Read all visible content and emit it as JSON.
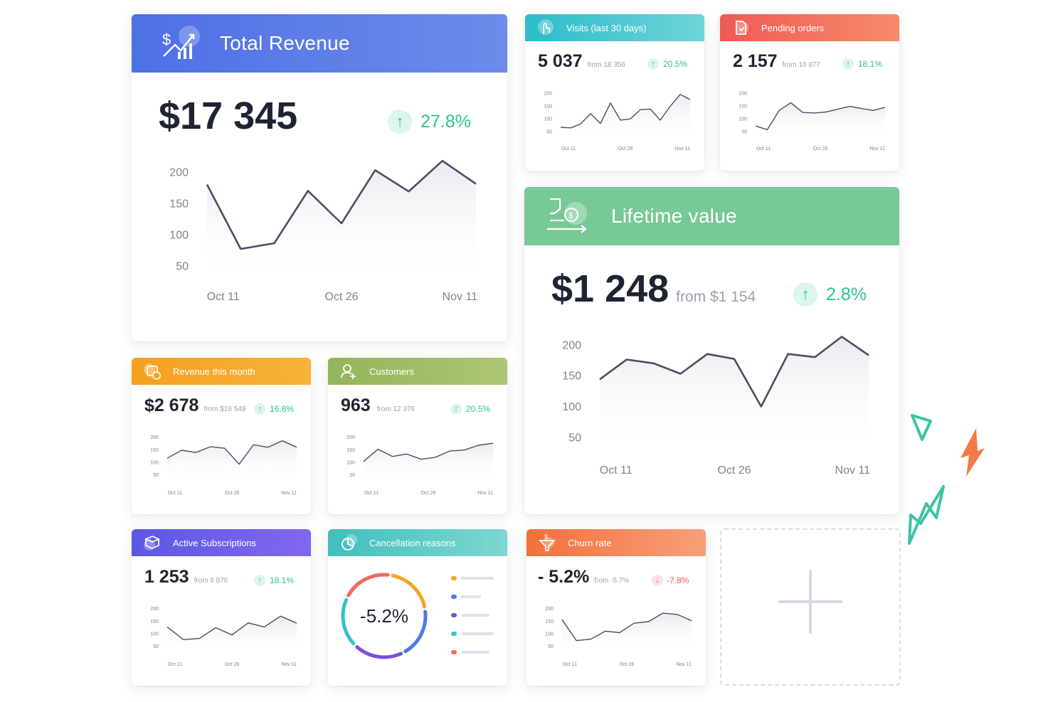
{
  "cards": {
    "total_revenue": {
      "title": "Total Revenue",
      "value": "$17 345",
      "change": "27.8%",
      "icon": "revenue-chart-icon",
      "color": "#5b7ee6"
    },
    "visits": {
      "title": "Visits (last 30 days)",
      "value": "5 037",
      "from": "from 18 356",
      "change": "20.5%",
      "icon": "touch-hand-icon",
      "color": "#3fc3cf"
    },
    "pending_orders": {
      "title": "Pending orders",
      "value": "2 157",
      "from": "from 10 877",
      "change": "18.1%",
      "icon": "document-icon",
      "color": "#f0645a"
    },
    "lifetime_value": {
      "title": "Lifetime value",
      "value": "$1 248",
      "from": "from $1 154",
      "change": "2.8%",
      "icon": "money-hand-icon",
      "color": "#77c996"
    },
    "revenue_month": {
      "title": "Revenue this month",
      "value": "$2 678",
      "from": "from $16 549",
      "change": "16.8%",
      "icon": "calendar-money-icon",
      "color": "#f5a524"
    },
    "customers": {
      "title": "Customers",
      "value": "963",
      "from": "from 12 376",
      "change": "20.5%",
      "icon": "user-add-icon",
      "color": "#9fbc63"
    },
    "subscriptions": {
      "title": "Active Subscriptions",
      "value": "1 253",
      "from": "from 6 876",
      "change": "18.1%",
      "icon": "subscription-box-icon",
      "color": "#6a5ce6"
    },
    "cancellation": {
      "title": "Cancellation reasons",
      "value": "-5.2%",
      "icon": "pie-chart-icon",
      "color": "#52c7c0"
    },
    "churn": {
      "title": "Churn rate",
      "value": "- 5.2%",
      "from": "from -5.7%",
      "change": "-7.8%",
      "icon": "funnel-money-icon",
      "color": "#f27b45"
    }
  },
  "chart_data": [
    {
      "id": "total_revenue",
      "type": "area",
      "y_ticks": [
        200,
        150,
        100,
        50
      ],
      "x_ticks": [
        "Oct 11",
        "Oct 26",
        "Nov 11"
      ],
      "ylim": [
        20,
        225
      ],
      "values": [
        180,
        77,
        86,
        170,
        118,
        203,
        169,
        218,
        181
      ]
    },
    {
      "id": "visits",
      "type": "area",
      "y_ticks": [
        200,
        150,
        100,
        50
      ],
      "x_ticks": [
        "Oct 11",
        "Oct 26",
        "Nov 11"
      ],
      "ylim": [
        20,
        225
      ],
      "values": [
        67,
        65,
        80,
        120,
        82,
        162,
        95,
        100,
        136,
        138,
        95,
        149,
        195,
        175
      ]
    },
    {
      "id": "pending_orders",
      "type": "area",
      "y_ticks": [
        200,
        150,
        100,
        50
      ],
      "x_ticks": [
        "Oct 11",
        "Oct 26",
        "Nov 11"
      ],
      "ylim": [
        20,
        225
      ],
      "values": [
        72,
        58,
        133,
        163,
        125,
        123,
        127,
        138,
        149,
        140,
        133,
        145
      ]
    },
    {
      "id": "lifetime_value",
      "type": "area",
      "y_ticks": [
        200,
        150,
        100,
        50
      ],
      "x_ticks": [
        "Oct 11",
        "Oct 26",
        "Nov 11"
      ],
      "ylim": [
        20,
        225
      ],
      "values": [
        144,
        176,
        170,
        153,
        185,
        177,
        100,
        185,
        180,
        213,
        183
      ]
    },
    {
      "id": "revenue_month",
      "type": "area",
      "y_ticks": [
        200,
        150,
        100,
        50
      ],
      "x_ticks": [
        "Oct 11",
        "Oct 26",
        "Nov 11"
      ],
      "ylim": [
        20,
        225
      ],
      "values": [
        116,
        148,
        139,
        162,
        156,
        92,
        170,
        160,
        186,
        160
      ]
    },
    {
      "id": "customers",
      "type": "area",
      "y_ticks": [
        200,
        150,
        100,
        50
      ],
      "x_ticks": [
        "Oct 11",
        "Oct 26",
        "Nov 11"
      ],
      "ylim": [
        20,
        225
      ],
      "values": [
        103,
        152,
        123,
        133,
        112,
        120,
        145,
        149,
        168,
        176
      ]
    },
    {
      "id": "subscriptions",
      "type": "area",
      "y_ticks": [
        200,
        150,
        100,
        50
      ],
      "x_ticks": [
        "Oct 11",
        "Oct 26",
        "Nov 11"
      ],
      "ylim": [
        20,
        225
      ],
      "values": [
        127,
        76,
        81,
        124,
        95,
        143,
        127,
        170,
        142
      ]
    },
    {
      "id": "churn",
      "type": "area",
      "y_ticks": [
        200,
        150,
        100,
        50
      ],
      "x_ticks": [
        "Oct 11",
        "Oct 26",
        "Nov 11"
      ],
      "ylim": [
        20,
        225
      ],
      "values": [
        156,
        72,
        78,
        110,
        104,
        142,
        148,
        182,
        177,
        152
      ]
    },
    {
      "id": "cancellation",
      "type": "pie",
      "center_label": "-5.2%",
      "segments": [
        {
          "color": "#f5a524",
          "value": 20
        },
        {
          "color": "#4a7be6",
          "value": 20
        },
        {
          "color": "#7a4fe0",
          "value": 20
        },
        {
          "color": "#33c1cf",
          "value": 20
        },
        {
          "color": "#f06a5f",
          "value": 20
        }
      ]
    }
  ],
  "add_widget": {
    "icon": "plus-icon"
  },
  "decorations": {
    "colors": [
      "#3cc3a4",
      "#f27b45"
    ]
  }
}
